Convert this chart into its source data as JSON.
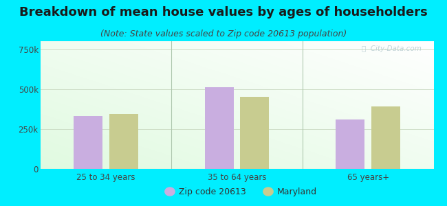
{
  "title": "Breakdown of mean house values by ages of householders",
  "subtitle": "(Note: State values scaled to Zip code 20613 population)",
  "categories": [
    "25 to 34 years",
    "35 to 64 years",
    "65 years+"
  ],
  "zip_values": [
    330000,
    510000,
    310000
  ],
  "state_values": [
    345000,
    450000,
    390000
  ],
  "zip_color": "#c9aee0",
  "state_color": "#c8cc90",
  "ylim": [
    0,
    800000
  ],
  "yticks": [
    0,
    250000,
    500000,
    750000
  ],
  "ytick_labels": [
    "0",
    "250k",
    "500k",
    "750k"
  ],
  "zip_label": "Zip code 20613",
  "state_label": "Maryland",
  "bg_color": "#00eeff",
  "title_fontsize": 13,
  "subtitle_fontsize": 9,
  "tick_label_fontsize": 8.5,
  "legend_fontsize": 9,
  "watermark": "ⓘ  City-Data.com"
}
